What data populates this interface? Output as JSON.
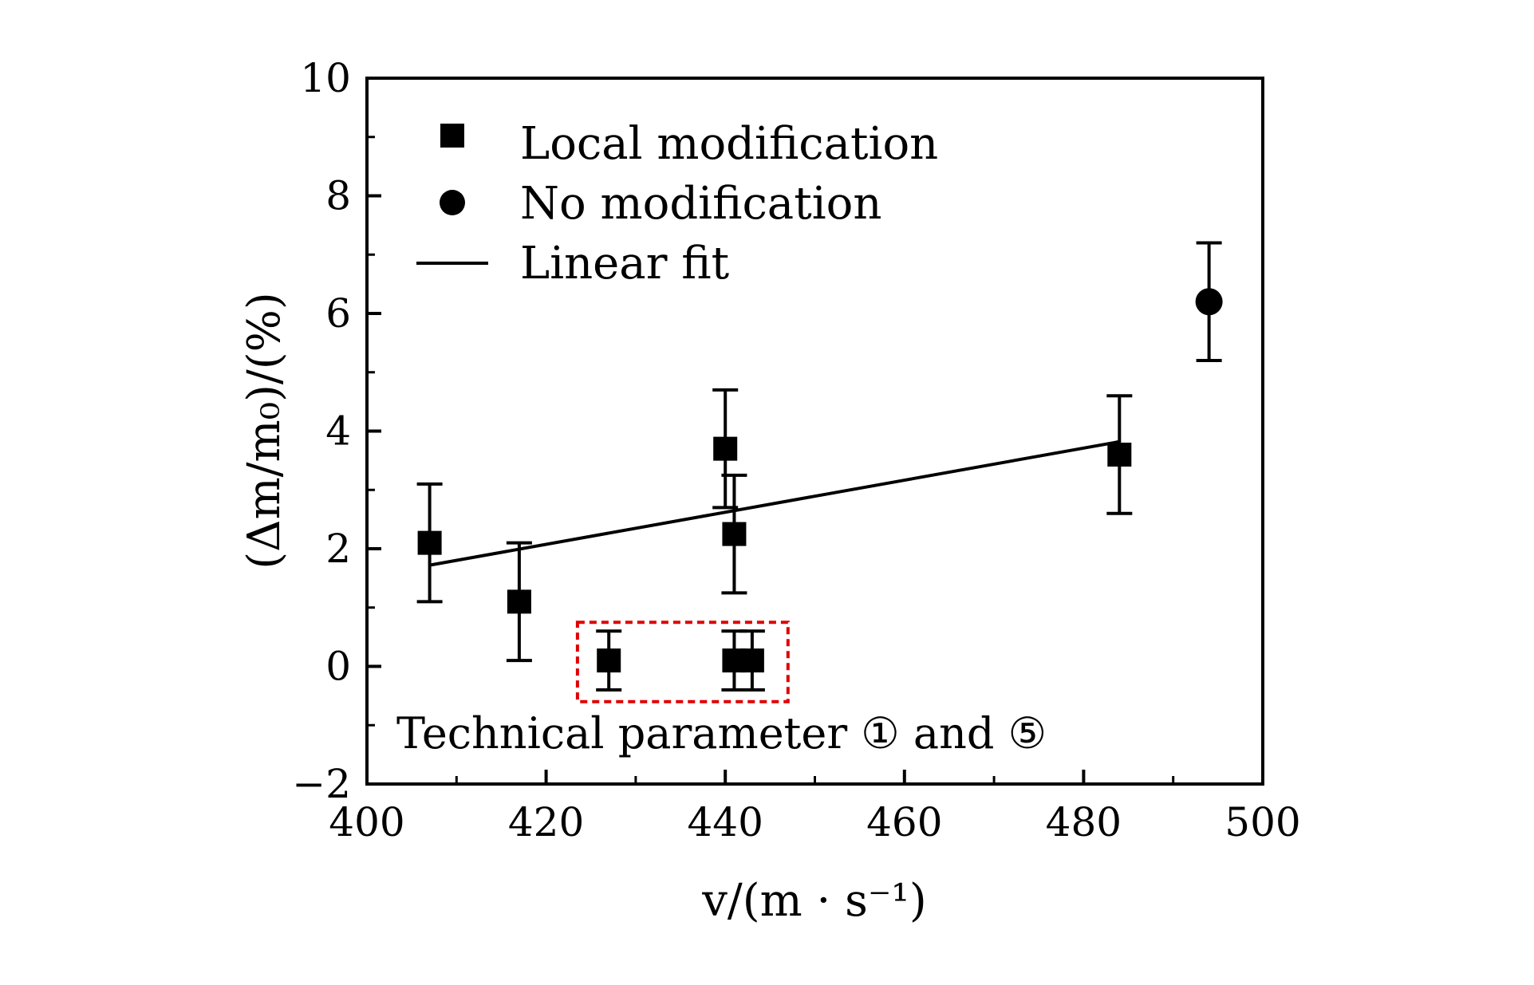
{
  "chart_data": {
    "type": "scatter",
    "xlabel": "v/(m · s⁻¹)",
    "ylabel": "(Δm/m₀)/(%)",
    "xlim": [
      400,
      500
    ],
    "ylim": [
      -2,
      10
    ],
    "xticks": [
      400,
      420,
      440,
      460,
      480,
      500
    ],
    "yticks": [
      -2,
      0,
      2,
      4,
      6,
      8,
      10
    ],
    "xtick_labels": [
      "400",
      "420",
      "440",
      "460",
      "480",
      "500"
    ],
    "ytick_labels": [
      "−2",
      "0",
      "2",
      "4",
      "6",
      "8",
      "10"
    ],
    "grid": false,
    "legend_position": "top-left",
    "series": [
      {
        "name": "Local modification",
        "marker": "square",
        "points": [
          {
            "x": 407,
            "y": 2.1,
            "err": 1.0
          },
          {
            "x": 417,
            "y": 1.1,
            "err": 1.0
          },
          {
            "x": 427,
            "y": 0.1,
            "err": 0.5
          },
          {
            "x": 440,
            "y": 3.7,
            "err": 1.0
          },
          {
            "x": 441,
            "y": 2.25,
            "err": 1.0
          },
          {
            "x": 441,
            "y": 0.1,
            "err": 0.5
          },
          {
            "x": 443,
            "y": 0.1,
            "err": 0.5
          },
          {
            "x": 484,
            "y": 3.6,
            "err": 1.0
          }
        ]
      },
      {
        "name": "No modification",
        "marker": "circle",
        "points": [
          {
            "x": 494,
            "y": 6.2,
            "err": 1.0
          }
        ]
      },
      {
        "name": "Linear fit",
        "type": "line",
        "points": [
          {
            "x": 407,
            "y": 1.72
          },
          {
            "x": 484,
            "y": 3.82
          }
        ]
      }
    ],
    "annotation": {
      "text": "Technical parameter ① and ⑤",
      "highlight_box": {
        "x_range": [
          423.5,
          447
        ],
        "y_range": [
          -0.6,
          0.75
        ],
        "color": "#e00000",
        "style": "dashed"
      }
    }
  }
}
